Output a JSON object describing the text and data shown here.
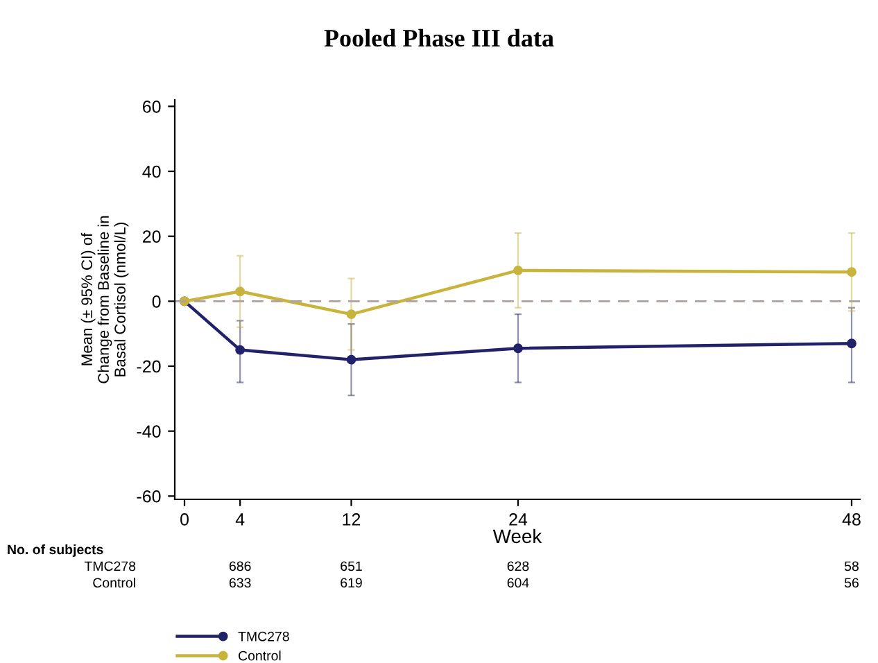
{
  "chart_data": {
    "type": "line",
    "title": "Pooled Phase III data",
    "xlabel": "Week",
    "ylabel": "Mean (± 95% CI) of\nChange from Baseline in\nBasal Cortisol (nmol/L)",
    "x": [
      0,
      4,
      12,
      24,
      48
    ],
    "series": [
      {
        "name": "TMC278",
        "color": "#22226a",
        "values": [
          0,
          -15,
          -18,
          -14.5,
          -13
        ],
        "errors": [
          null,
          [
            -25,
            -6
          ],
          [
            -29,
            -7
          ],
          [
            -25,
            -4
          ],
          [
            -25,
            -2
          ]
        ]
      },
      {
        "name": "Control",
        "color": "#c8b43c",
        "values": [
          0,
          3,
          -4,
          9.5,
          9
        ],
        "errors": [
          null,
          [
            -8,
            14
          ],
          [
            -15,
            7
          ],
          [
            -2,
            21
          ],
          [
            -3,
            21
          ]
        ]
      }
    ],
    "xlim": [
      -0.7,
      48.6
    ],
    "xticks": [
      0,
      4,
      12,
      24,
      48
    ],
    "ylim": [
      -61,
      62
    ],
    "yticks": [
      -60,
      -40,
      -20,
      0,
      20,
      40,
      60
    ],
    "ref_lines": [
      {
        "axis": "y",
        "value": 0,
        "color": "#b0a0a0",
        "line_style": "dashed"
      }
    ],
    "annotations": [
      "No. of subjects",
      "TMC278",
      "686",
      "651",
      "628",
      "58",
      "Control",
      "633",
      "619",
      "604",
      "56"
    ],
    "marker": "circle",
    "line_style": "solid",
    "grid": false,
    "legend": "bottom left"
  }
}
